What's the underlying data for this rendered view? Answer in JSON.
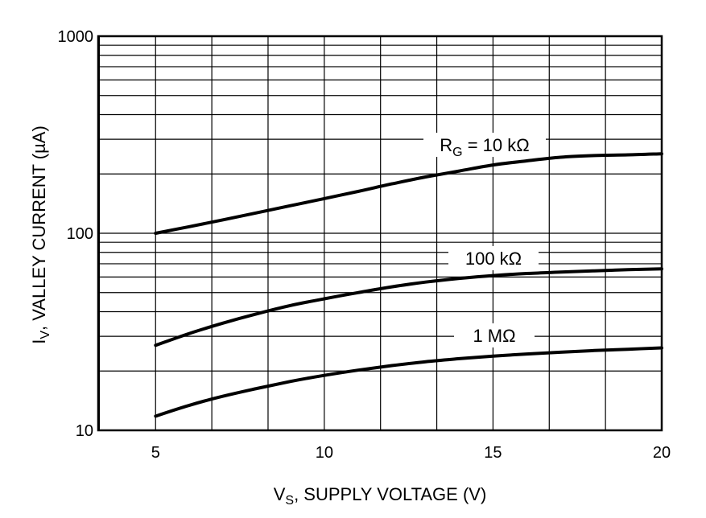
{
  "chart_data": {
    "type": "line",
    "x_scale": "linear",
    "y_scale": "log",
    "xlim": [
      3.3,
      20
    ],
    "ylim": [
      10,
      1000
    ],
    "xlabel": {
      "main": "V",
      "sub": "S",
      "rest": ", SUPPLY VOLTAGE (V)"
    },
    "ylabel": {
      "main": "I",
      "sub": "V",
      "rest": ", VALLEY CURRENT (µA)"
    },
    "x_ticks": [
      5,
      10,
      15,
      20
    ],
    "y_ticks": [
      10,
      100,
      1000
    ],
    "grid": true,
    "series": [
      {
        "name": "R_G = 10 kΩ",
        "label": {
          "main": "R",
          "sub": "G",
          "rest": " = 10 kΩ"
        },
        "x": [
          5,
          6,
          7,
          8,
          9,
          10,
          11,
          12,
          13,
          14,
          15,
          16,
          17,
          18,
          19,
          20
        ],
        "y": [
          100,
          108,
          117,
          127,
          138,
          150,
          163,
          178,
          193,
          207,
          222,
          233,
          243,
          248,
          250,
          253
        ]
      },
      {
        "name": "100 kΩ",
        "label": {
          "main": "100 kΩ",
          "sub": "",
          "rest": ""
        },
        "x": [
          5,
          6,
          7,
          8,
          9,
          10,
          11,
          12,
          13,
          14,
          15,
          16,
          17,
          18,
          19,
          20
        ],
        "y": [
          27,
          31,
          35,
          39,
          43,
          46.5,
          50,
          53.5,
          56.5,
          59,
          61,
          62.5,
          63.5,
          64.5,
          65.3,
          66
        ]
      },
      {
        "name": "1 MΩ",
        "label": {
          "main": "1 MΩ",
          "sub": "",
          "rest": ""
        },
        "x": [
          5,
          6,
          7,
          8,
          9,
          10,
          11,
          12,
          13,
          14,
          15,
          16,
          17,
          18,
          19,
          20
        ],
        "y": [
          11.8,
          13.4,
          14.9,
          16.3,
          17.7,
          19,
          20.2,
          21.3,
          22.3,
          23.1,
          23.8,
          24.4,
          24.9,
          25.4,
          25.8,
          26.2
        ]
      }
    ]
  }
}
